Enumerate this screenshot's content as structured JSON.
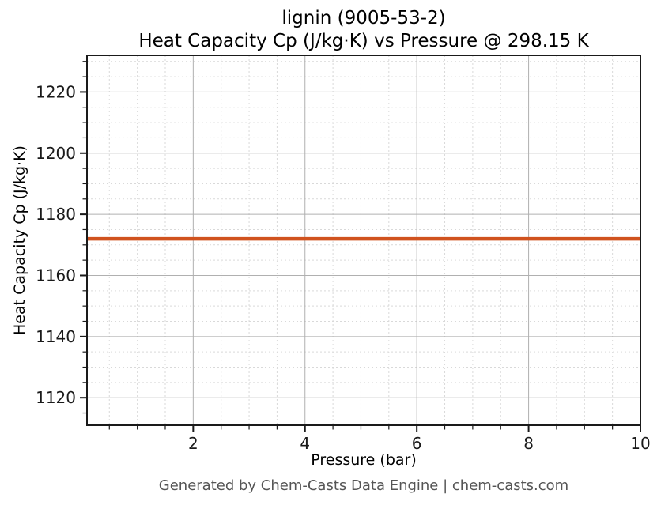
{
  "title": {
    "line1": "lignin (9005-53-2)",
    "line2": "Heat Capacity Cp (J/kg·K) vs Pressure @ 298.15 K"
  },
  "footer": "Generated by Chem-Casts Data Engine | chem-casts.com",
  "colors": {
    "line": "#d0521e",
    "axis": "#1a1a1a",
    "major_grid": "#b0b0b0",
    "minor_grid": "#d9d9d9",
    "tick_label": "#1a1a1a",
    "footer_text": "#555555",
    "background": "#ffffff"
  },
  "chart_data": {
    "type": "line",
    "title": "lignin (9005-53-2)",
    "subtitle": "Heat Capacity Cp (J/kg·K) vs Pressure @ 298.15 K",
    "xlabel": "Pressure (bar)",
    "ylabel": "Heat Capacity Cp (J/kg·K)",
    "xlim": [
      0.1,
      10
    ],
    "ylim": [
      1111,
      1232
    ],
    "x_major_ticks": [
      2,
      4,
      6,
      8,
      10
    ],
    "x_minor_step": 0.5,
    "y_major_ticks": [
      1120,
      1140,
      1160,
      1180,
      1200,
      1220
    ],
    "y_minor_step": 5,
    "grid": "major+minor",
    "legend": "none",
    "series": [
      {
        "name": "Cp",
        "x": [
          0.1,
          1,
          2,
          3,
          4,
          5,
          6,
          7,
          8,
          9,
          10
        ],
        "y": [
          1172,
          1172,
          1172,
          1172,
          1172,
          1172,
          1172,
          1172,
          1172,
          1172,
          1172
        ]
      }
    ]
  }
}
